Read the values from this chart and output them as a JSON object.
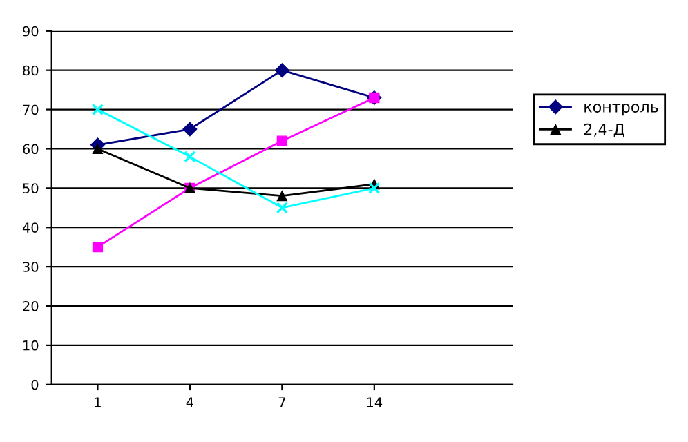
{
  "chart_data": {
    "type": "line",
    "categories": [
      "1",
      "4",
      "7",
      "14"
    ],
    "series": [
      {
        "name": "контроль",
        "color": "#000080",
        "marker": "diamond",
        "values": [
          61,
          65,
          80,
          73
        ]
      },
      {
        "color": "#ff00ff",
        "marker": "square",
        "values": [
          35,
          50,
          62,
          73
        ]
      },
      {
        "name": "2,4-Д",
        "color": "#000000",
        "marker": "triangle",
        "values": [
          60,
          50,
          48,
          51
        ]
      },
      {
        "color": "#00ffff",
        "marker": "cross",
        "values": [
          70,
          58,
          45,
          50
        ]
      }
    ],
    "ylim": [
      0,
      90
    ],
    "yticks": [
      0,
      10,
      20,
      30,
      40,
      50,
      60,
      70,
      80,
      90
    ],
    "grid": "y",
    "legend": "right"
  }
}
